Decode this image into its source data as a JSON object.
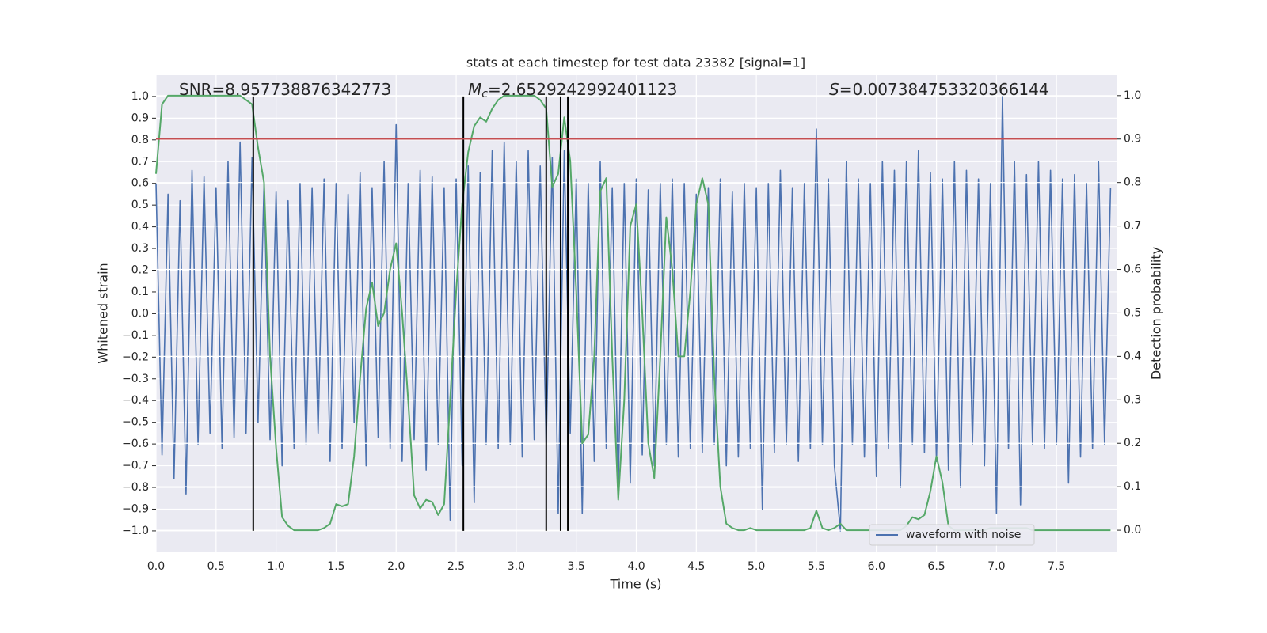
{
  "chart_data": {
    "type": "line",
    "title": "stats at each timestep for test data 23382 [signal=1]",
    "xlabel": "Time (s)",
    "ylabel": "Whitened strain",
    "y2label": "Detection probability",
    "annotations": [
      {
        "text": "SNR=8.957738876342773"
      },
      {
        "symbol": "M",
        "subscript": "c",
        "text": "=2.6529242992401123"
      },
      {
        "symbol": "S",
        "text": "=0.007384753320366144"
      }
    ],
    "xlim": [
      0,
      8.0
    ],
    "ylim": [
      -1.095,
      1.098
    ],
    "y2lim": [
      -0.049,
      1.047
    ],
    "xticks": [
      {
        "value": 0,
        "label": "0.0"
      },
      0.5,
      {
        "value": 1,
        "label": "1.0"
      },
      1.5,
      {
        "value": 2,
        "label": "2.0"
      },
      2.5,
      {
        "value": 3,
        "label": "3.0"
      },
      3.5,
      {
        "value": 4,
        "label": "4.0"
      },
      4.5,
      {
        "value": 5,
        "label": "5.0"
      },
      5.5,
      {
        "value": 6,
        "label": "6.0"
      },
      6.5,
      {
        "value": 7,
        "label": "7.0"
      },
      7.5
    ],
    "yticks": [
      {
        "value": -1,
        "label": "−1.0"
      },
      {
        "value": -0.9,
        "label": "−0.9"
      },
      {
        "value": -0.8,
        "label": "−0.8"
      },
      {
        "value": -0.7,
        "label": "−0.7"
      },
      {
        "value": -0.6,
        "label": "−0.6"
      },
      {
        "value": -0.5,
        "label": "−0.5"
      },
      {
        "value": -0.4,
        "label": "−0.4"
      },
      {
        "value": -0.3,
        "label": "−0.3"
      },
      {
        "value": -0.2,
        "label": "−0.2"
      },
      {
        "value": -0.1,
        "label": "−0.1"
      },
      {
        "value": 0,
        "label": "0.0"
      },
      0.1,
      0.2,
      0.3,
      0.4,
      0.5,
      0.6,
      0.7,
      0.8,
      0.9,
      {
        "value": 1,
        "label": "1.0"
      }
    ],
    "y2ticks": [
      {
        "value": 0,
        "label": "0.0"
      },
      0.1,
      0.2,
      0.3,
      0.4,
      0.5,
      0.6,
      0.7,
      0.8,
      0.9,
      {
        "value": 1,
        "label": "1.0"
      }
    ],
    "grid": true,
    "legend": "lower right",
    "x": [
      0,
      0.05,
      0.1,
      0.15,
      0.2,
      0.25,
      0.3,
      0.35,
      0.4,
      0.45,
      0.5,
      0.55,
      0.6,
      0.65,
      0.7,
      0.75,
      0.8,
      0.85,
      0.9,
      0.95,
      1.0,
      1.05,
      1.1,
      1.15,
      1.2,
      1.25,
      1.3,
      1.35,
      1.4,
      1.45,
      1.5,
      1.55,
      1.6,
      1.65,
      1.7,
      1.75,
      1.8,
      1.85,
      1.9,
      1.95,
      2.0,
      2.05,
      2.1,
      2.15,
      2.2,
      2.25,
      2.3,
      2.35,
      2.4,
      2.45,
      2.5,
      2.55,
      2.6,
      2.65,
      2.7,
      2.75,
      2.8,
      2.85,
      2.9,
      2.95,
      3.0,
      3.05,
      3.1,
      3.15,
      3.2,
      3.25,
      3.3,
      3.35,
      3.4,
      3.45,
      3.5,
      3.55,
      3.6,
      3.65,
      3.7,
      3.75,
      3.8,
      3.85,
      3.9,
      3.95,
      4.0,
      4.05,
      4.1,
      4.15,
      4.2,
      4.25,
      4.3,
      4.35,
      4.4,
      4.45,
      4.5,
      4.55,
      4.6,
      4.65,
      4.7,
      4.75,
      4.8,
      4.85,
      4.9,
      4.95,
      5.0,
      5.05,
      5.1,
      5.15,
      5.2,
      5.25,
      5.3,
      5.35,
      5.4,
      5.45,
      5.5,
      5.55,
      5.6,
      5.65,
      5.7,
      5.75,
      5.8,
      5.85,
      5.9,
      5.95,
      6.0,
      6.05,
      6.1,
      6.15,
      6.2,
      6.25,
      6.3,
      6.35,
      6.4,
      6.45,
      6.5,
      6.55,
      6.6,
      6.65,
      6.7,
      6.75,
      6.8,
      6.85,
      6.9,
      6.95,
      7.0,
      7.05,
      7.1,
      7.15,
      7.2,
      7.25,
      7.3,
      7.35,
      7.4,
      7.45,
      7.5,
      7.55,
      7.6,
      7.65,
      7.7,
      7.75,
      7.8,
      7.85,
      7.9,
      7.95
    ],
    "series": [
      {
        "name": "waveform with noise",
        "color": "#4c72b0",
        "axis": "y",
        "values": [
          0.6,
          -0.65,
          0.55,
          -0.76,
          0.52,
          -0.83,
          0.66,
          -0.6,
          0.63,
          -0.55,
          0.58,
          -0.62,
          0.7,
          -0.57,
          0.79,
          -0.55,
          0.72,
          -0.5,
          0.6,
          -0.58,
          0.56,
          -0.7,
          0.52,
          -0.62,
          0.6,
          -0.6,
          0.58,
          -0.55,
          0.62,
          -0.68,
          0.6,
          -0.62,
          0.55,
          -0.5,
          0.65,
          -0.7,
          0.58,
          -0.57,
          0.7,
          -0.62,
          0.87,
          -0.68,
          0.6,
          -0.58,
          0.66,
          -0.72,
          0.63,
          -0.6,
          0.58,
          -0.95,
          0.62,
          -0.7,
          0.68,
          -0.87,
          0.65,
          -0.6,
          0.75,
          -0.62,
          0.79,
          -0.6,
          0.7,
          -0.66,
          0.75,
          -0.58,
          0.68,
          -0.6,
          0.72,
          -0.92,
          0.75,
          -0.55,
          0.62,
          -0.92,
          0.6,
          -0.68,
          0.7,
          -0.62,
          0.58,
          -0.8,
          0.6,
          -0.78,
          0.62,
          -0.65,
          0.57,
          -0.7,
          0.6,
          -0.6,
          0.62,
          -0.66,
          0.6,
          -0.62,
          0.55,
          -0.64,
          0.58,
          -0.6,
          0.62,
          -0.7,
          0.56,
          -0.66,
          0.6,
          -0.62,
          0.58,
          -0.9,
          0.6,
          -0.64,
          0.66,
          -0.6,
          0.58,
          -0.68,
          0.6,
          -0.62,
          0.85,
          -0.6,
          0.62,
          -0.7,
          -1.0,
          0.7,
          -0.6,
          0.62,
          -0.66,
          0.6,
          -0.75,
          0.7,
          -0.62,
          0.66,
          -0.8,
          0.7,
          -0.6,
          0.75,
          -0.64,
          0.65,
          -0.68,
          0.62,
          -0.72,
          0.7,
          -0.8,
          0.66,
          -0.6,
          0.62,
          -0.7,
          0.6,
          -0.92,
          1.0,
          -0.62,
          0.7,
          -0.88,
          0.64,
          -0.6,
          0.7,
          -0.62,
          0.66,
          -0.6,
          0.62,
          -0.78,
          0.64,
          -0.66,
          0.6,
          -0.62,
          0.7,
          -0.6,
          0.58
        ]
      },
      {
        "color": "#55a868",
        "axis": "y2",
        "values": [
          0.82,
          0.98,
          1.0,
          1.0,
          1.0,
          1.0,
          1.0,
          1.0,
          1.0,
          1.0,
          1.0,
          1.0,
          1.0,
          1.0,
          1.0,
          0.99,
          0.98,
          0.88,
          0.8,
          0.4,
          0.19,
          0.03,
          0.01,
          0.0,
          0.0,
          0.0,
          0.0,
          0.0,
          0.005,
          0.015,
          0.06,
          0.055,
          0.06,
          0.17,
          0.35,
          0.51,
          0.57,
          0.47,
          0.5,
          0.6,
          0.66,
          0.5,
          0.3,
          0.08,
          0.05,
          0.07,
          0.065,
          0.035,
          0.06,
          0.3,
          0.55,
          0.75,
          0.87,
          0.93,
          0.95,
          0.94,
          0.97,
          0.99,
          1.0,
          1.0,
          1.0,
          1.0,
          1.0,
          1.0,
          0.99,
          0.97,
          0.79,
          0.82,
          0.95,
          0.85,
          0.55,
          0.2,
          0.22,
          0.4,
          0.78,
          0.81,
          0.4,
          0.07,
          0.3,
          0.7,
          0.75,
          0.5,
          0.2,
          0.12,
          0.4,
          0.72,
          0.6,
          0.4,
          0.4,
          0.55,
          0.75,
          0.81,
          0.75,
          0.35,
          0.1,
          0.015,
          0.005,
          0.0,
          0.0,
          0.005,
          0.0,
          0.0,
          0.0,
          0.0,
          0.0,
          0.0,
          0.0,
          0.0,
          0.0,
          0.005,
          0.045,
          0.005,
          0.0,
          0.005,
          0.015,
          0.0,
          0.0,
          0.0,
          0.0,
          0.0,
          0.0,
          0.0,
          0.0,
          0.0,
          0.0,
          0.01,
          0.03,
          0.025,
          0.035,
          0.09,
          0.17,
          0.11,
          0.01,
          0.0,
          0.0,
          0.0,
          0.0,
          0.0,
          0.0,
          0.005,
          0.005,
          0.005,
          0.005,
          0.005,
          0.005,
          0.005,
          0.0,
          0.0,
          0.0,
          0.0,
          0.0,
          0.0,
          0.0,
          0.0,
          0.0,
          0.0,
          0.0,
          0.0,
          0.0,
          0.0
        ]
      }
    ],
    "vlines": {
      "x": [
        0.81,
        2.56,
        3.25,
        3.37,
        3.43
      ],
      "ymin": -1,
      "ymax": 1,
      "color": "#000000"
    },
    "hline": {
      "y2": 0.9,
      "color": "#c44e52"
    }
  }
}
